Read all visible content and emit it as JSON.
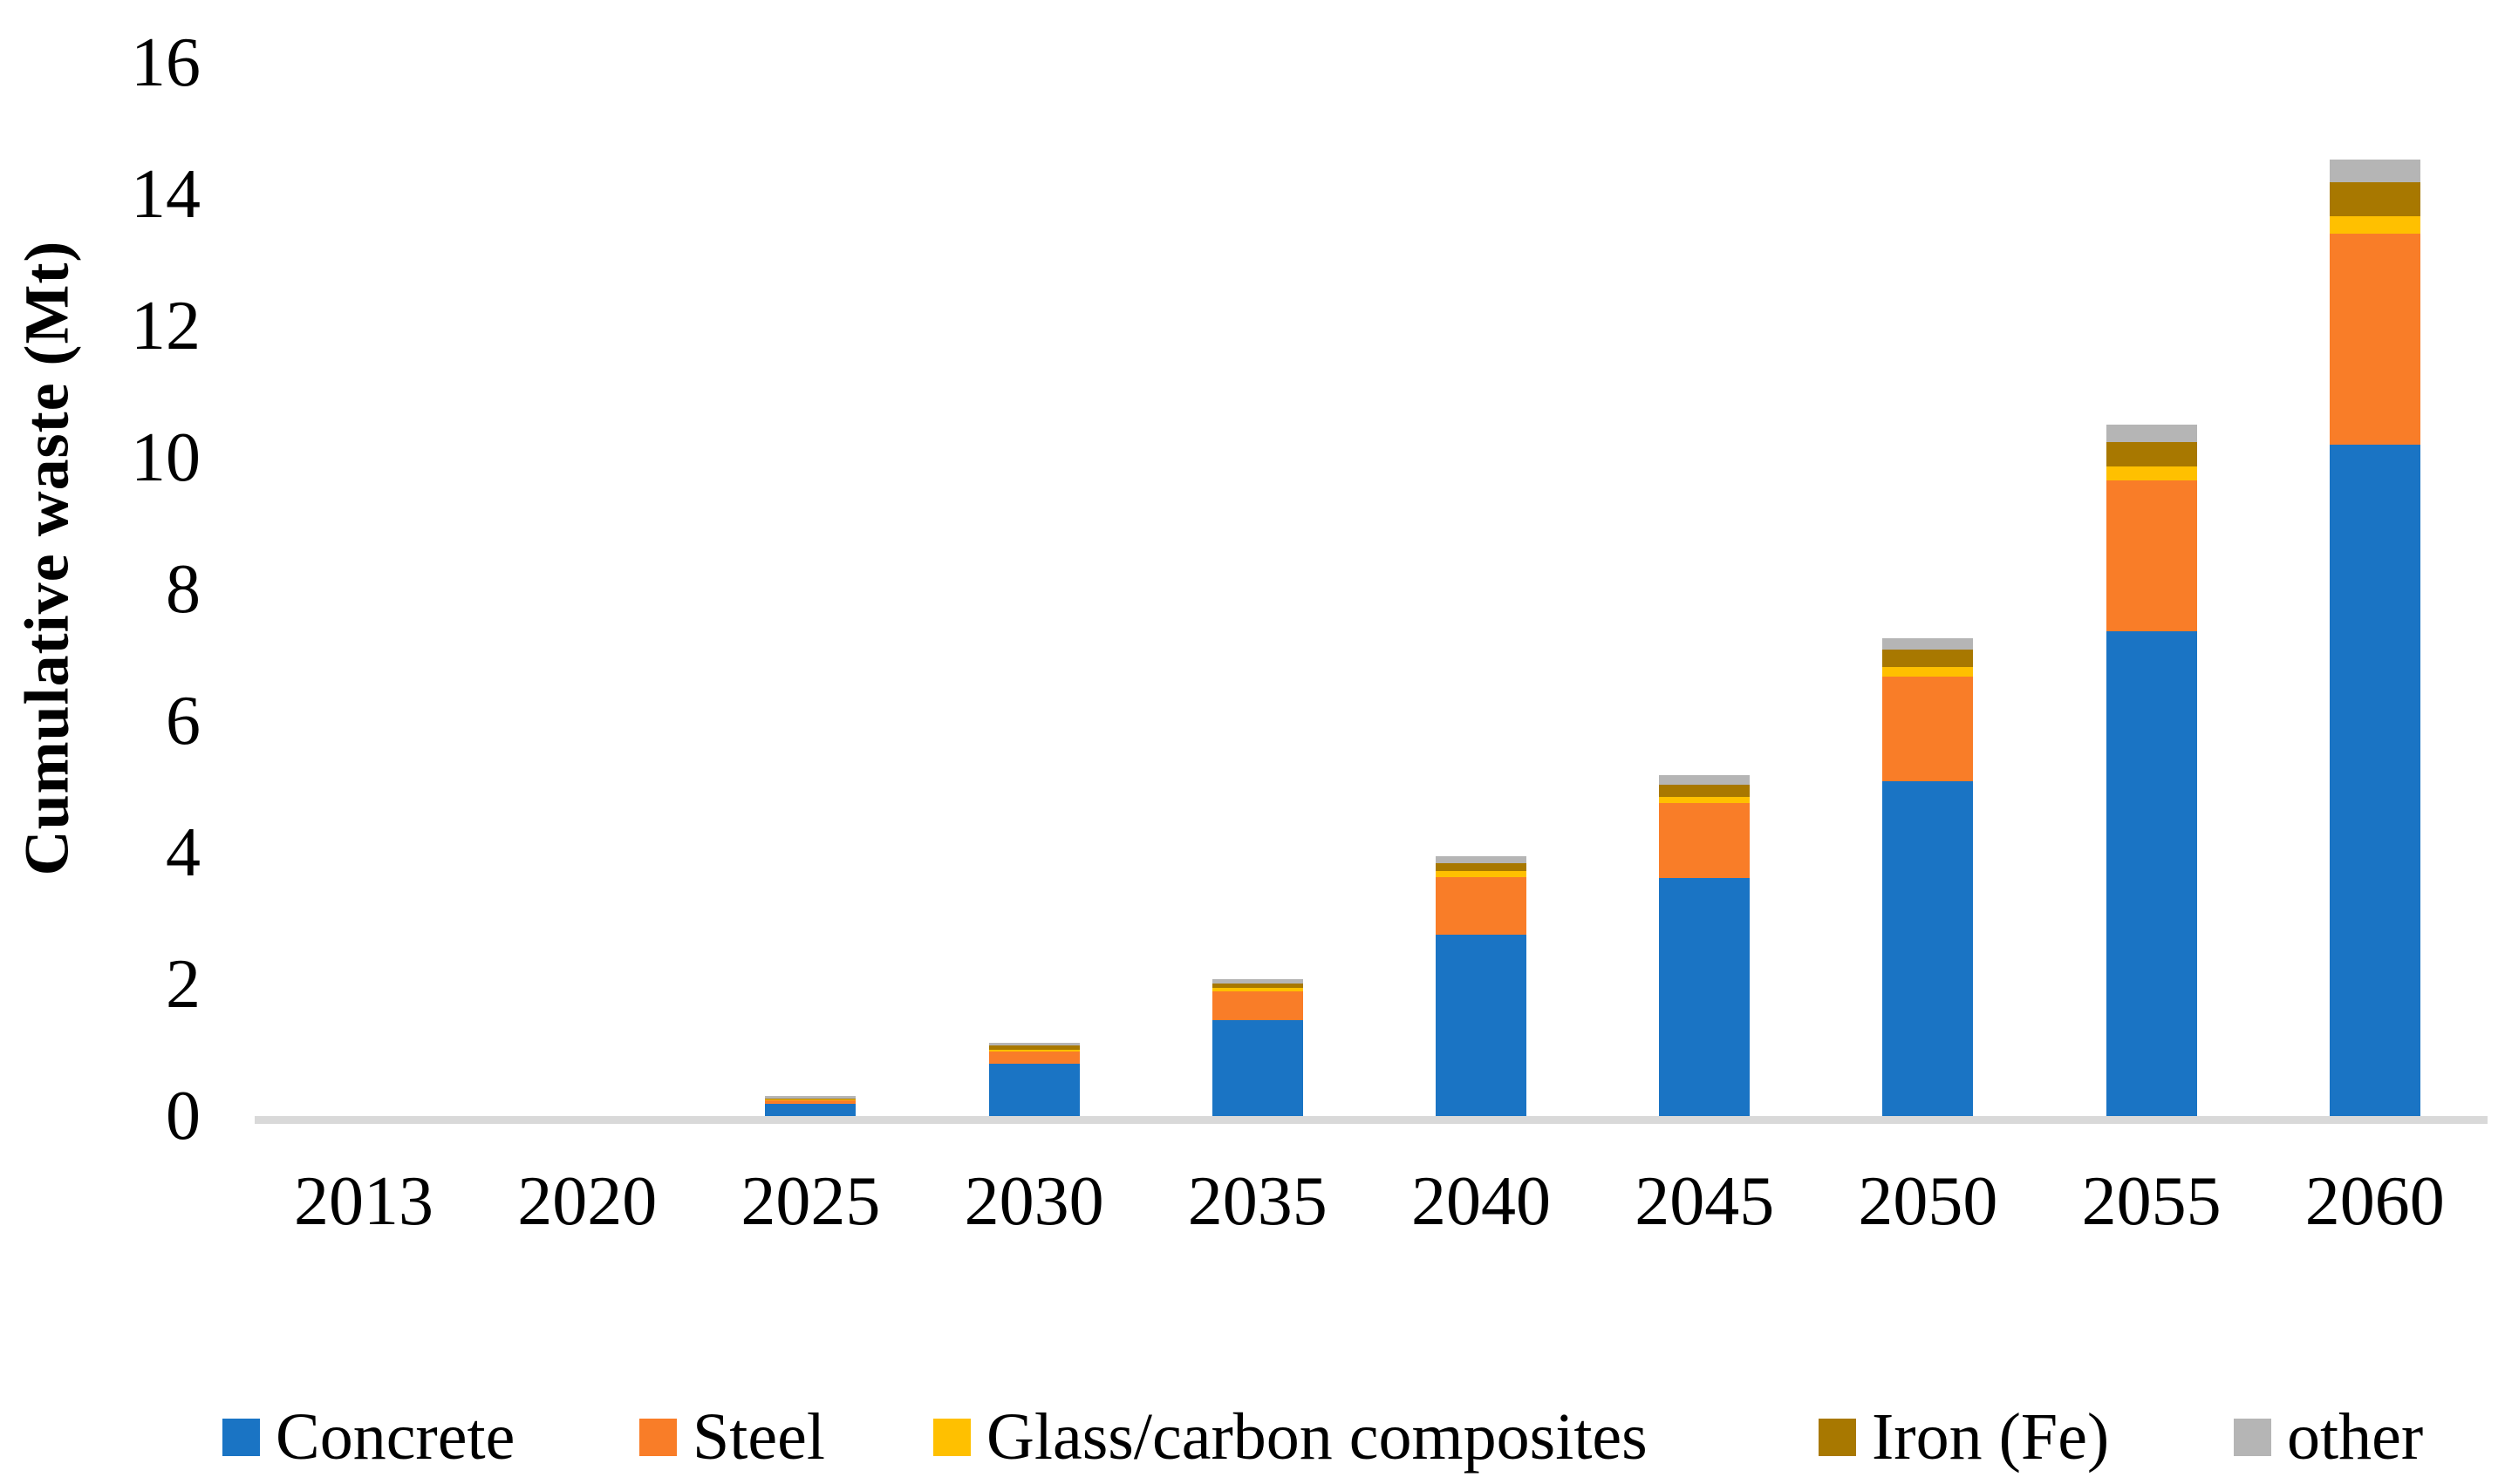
{
  "chart_data": {
    "type": "bar",
    "stacked": true,
    "title": "",
    "xlabel": "",
    "ylabel": "Cumulative waste (Mt)",
    "ylim": [
      0,
      16
    ],
    "ytick_step": 2,
    "ytick_labels": [
      "0",
      "2",
      "4",
      "6",
      "8",
      "10",
      "12",
      "14",
      "16"
    ],
    "grid": false,
    "legend_position": "bottom",
    "axis_line_color": "#D9D9D9",
    "categories": [
      "2013",
      "2020",
      "2025",
      "2030",
      "2035",
      "2040",
      "2045",
      "2050",
      "2055",
      "2060"
    ],
    "series": [
      {
        "name": "Concrete",
        "color": "#1A74C4",
        "values": [
          0,
          0,
          0.18,
          0.79,
          1.46,
          2.76,
          3.61,
          5.08,
          7.36,
          10.2
        ]
      },
      {
        "name": "Steel",
        "color": "#F97D28",
        "values": [
          0,
          0,
          0.06,
          0.19,
          0.44,
          0.87,
          1.14,
          1.6,
          2.3,
          3.2
        ]
      },
      {
        "name": "Glass/carbon composites",
        "color": "#FFC000",
        "values": [
          0,
          0,
          0.01,
          0.03,
          0.05,
          0.09,
          0.1,
          0.14,
          0.21,
          0.27
        ]
      },
      {
        "name": "Iron (Fe)",
        "color": "#A87800",
        "values": [
          0,
          0,
          0.01,
          0.06,
          0.06,
          0.12,
          0.19,
          0.27,
          0.37,
          0.51
        ]
      },
      {
        "name": "other",
        "color": "#B5B5B5",
        "values": [
          0,
          0,
          0.04,
          0.04,
          0.07,
          0.11,
          0.14,
          0.17,
          0.26,
          0.35
        ]
      }
    ],
    "totals": [
      0,
      0,
      0.3,
      1.11,
      2.08,
      3.95,
      5.18,
      7.26,
      10.5,
      14.53
    ]
  }
}
